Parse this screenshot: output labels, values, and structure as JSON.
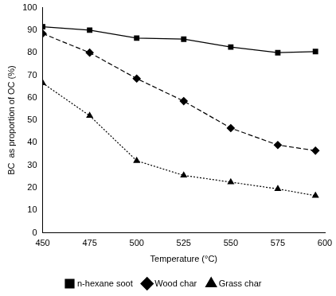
{
  "chart_data": {
    "type": "line",
    "x_label": "Temperature (°C)",
    "y_label": "BC  as proportion of OC (%)",
    "x": [
      450,
      475,
      500,
      525,
      550,
      575,
      595
    ],
    "series": [
      {
        "name": "n-hexane soot",
        "color": "#000000",
        "marker": "square",
        "line_style": "solid",
        "values": [
          91.5,
          90,
          86.5,
          86,
          82.5,
          80,
          80.5
        ]
      },
      {
        "name": "Wood char",
        "color": "#000000",
        "marker": "diamond",
        "line_style": "dashed",
        "values": [
          88.5,
          80,
          68.5,
          58.5,
          46.5,
          39,
          36.5
        ]
      },
      {
        "name": "Grass char",
        "color": "#000000",
        "marker": "triangle",
        "line_style": "dotted",
        "values": [
          66.5,
          52,
          32,
          25.5,
          22.5,
          19.5,
          16.5
        ]
      }
    ],
    "xlim": [
      450,
      600
    ],
    "xticks": [
      450,
      475,
      500,
      525,
      550,
      575,
      600
    ],
    "ylim": [
      0,
      100
    ],
    "yticks": [
      0,
      10,
      20,
      30,
      40,
      50,
      60,
      70,
      80,
      90,
      100
    ],
    "grid": false,
    "legend": "bottom"
  }
}
